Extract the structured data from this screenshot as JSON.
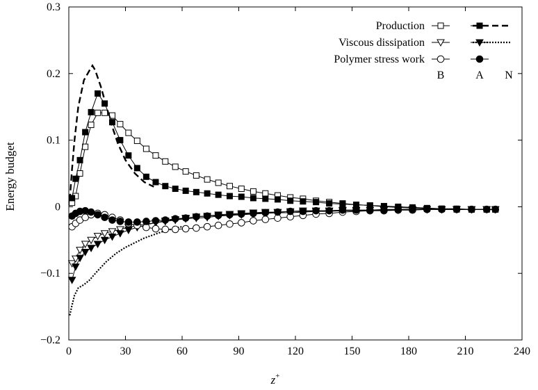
{
  "chart_data": {
    "type": "line",
    "title": "",
    "xlabel": "z",
    "xlabel_sup": "+",
    "ylabel": "Energy budget",
    "xlim": [
      0,
      240
    ],
    "ylim": [
      -0.2,
      0.3
    ],
    "xticks": [
      0,
      30,
      60,
      90,
      120,
      150,
      180,
      210,
      240
    ],
    "yticks": [
      -0.2,
      -0.1,
      0,
      0.1,
      0.2,
      0.3
    ],
    "xtick_labels": [
      "0",
      "30",
      "60",
      "90",
      "120",
      "150",
      "180",
      "210",
      "240"
    ],
    "ytick_labels": [
      "−0.2",
      "−0.1",
      "0",
      "0.1",
      "0.2",
      "0.3"
    ],
    "grid": false,
    "legend_position": "top-right",
    "legend": {
      "rows": [
        "Production",
        "Viscous dissipation",
        "Polymer stress work"
      ],
      "columns": [
        "B",
        "A",
        "N"
      ]
    },
    "series": [
      {
        "name": "Production B",
        "marker": "square-open",
        "line": "solid",
        "x": [
          1.7,
          3.6,
          5.9,
          8.7,
          11.8,
          15.3,
          19.0,
          23.0,
          27.2,
          31.6,
          36.2,
          41.0,
          46.0,
          51.1,
          56.4,
          61.9,
          67.5,
          73.3,
          79.2,
          85.2,
          91.4,
          97.7,
          104.1,
          110.6,
          117.3,
          124.0,
          130.9,
          137.9,
          145.0,
          152.2,
          159.5,
          166.9,
          174.4,
          182.0,
          189.7,
          197.5,
          205.4,
          213.3,
          221.3,
          225.9
        ],
        "y": [
          0.006,
          0.016,
          0.05,
          0.09,
          0.123,
          0.141,
          0.141,
          0.137,
          0.124,
          0.111,
          0.099,
          0.087,
          0.077,
          0.068,
          0.06,
          0.053,
          0.047,
          0.041,
          0.036,
          0.031,
          0.027,
          0.023,
          0.02,
          0.017,
          0.014,
          0.012,
          0.009,
          0.007,
          0.005,
          0.003,
          0.002,
          0.0,
          -0.001,
          -0.002,
          -0.003,
          -0.003,
          -0.004,
          -0.004,
          -0.004,
          -0.004
        ]
      },
      {
        "name": "Production A",
        "marker": "square-filled",
        "line": "solid",
        "x": [
          1.7,
          3.6,
          5.9,
          8.7,
          11.8,
          15.3,
          19.0,
          23.0,
          27.2,
          31.6,
          36.2,
          41.0,
          46.0,
          51.1,
          56.4,
          61.9,
          67.5,
          73.3,
          79.2,
          85.2,
          91.4,
          97.7,
          104.1,
          110.6,
          117.3,
          124.0,
          130.9,
          137.9,
          145.0,
          152.2,
          159.5,
          166.9,
          174.4,
          182.0,
          189.7,
          197.5,
          205.4,
          213.3,
          221.3,
          225.9
        ],
        "y": [
          0.013,
          0.042,
          0.07,
          0.112,
          0.142,
          0.17,
          0.155,
          0.127,
          0.1,
          0.077,
          0.058,
          0.045,
          0.037,
          0.031,
          0.027,
          0.024,
          0.022,
          0.02,
          0.018,
          0.016,
          0.015,
          0.013,
          0.012,
          0.011,
          0.009,
          0.008,
          0.007,
          0.005,
          0.004,
          0.003,
          0.002,
          0.001,
          0.0,
          -0.001,
          -0.002,
          -0.003,
          -0.003,
          -0.004,
          -0.004,
          -0.004
        ]
      },
      {
        "name": "Production N",
        "marker": "none",
        "line": "dashed",
        "x": [
          0.5,
          1.5,
          3,
          5,
          8,
          11,
          12.5,
          14,
          17,
          20,
          23,
          26,
          30,
          35,
          40,
          45
        ],
        "y": [
          0.01,
          0.05,
          0.1,
          0.15,
          0.19,
          0.205,
          0.212,
          0.205,
          0.18,
          0.15,
          0.12,
          0.095,
          0.07,
          0.05,
          0.037,
          0.03
        ]
      },
      {
        "name": "Viscous dissipation B",
        "marker": "triangle-open",
        "line": "solid",
        "x": [
          1.7,
          3.6,
          5.9,
          8.7,
          11.8,
          15.3,
          19.0,
          23.0,
          27.2,
          31.6,
          36.2,
          41.0,
          46.0,
          51.1,
          56.4,
          61.9,
          67.5,
          73.3,
          79.2,
          85.2,
          91.4,
          97.7,
          104.1,
          110.6,
          117.3,
          124.0,
          130.9,
          137.9,
          145.0,
          152.2,
          159.5,
          166.9,
          174.4,
          182.0,
          189.7,
          197.5,
          205.4,
          213.3,
          221.3,
          225.9
        ],
        "y": [
          -0.085,
          -0.078,
          -0.065,
          -0.056,
          -0.05,
          -0.044,
          -0.04,
          -0.037,
          -0.034,
          -0.031,
          -0.028,
          -0.026,
          -0.024,
          -0.022,
          -0.02,
          -0.018,
          -0.017,
          -0.016,
          -0.014,
          -0.013,
          -0.012,
          -0.011,
          -0.01,
          -0.009,
          -0.009,
          -0.008,
          -0.007,
          -0.007,
          -0.006,
          -0.006,
          -0.005,
          -0.005,
          -0.005,
          -0.004,
          -0.004,
          -0.004,
          -0.004,
          -0.004,
          -0.004,
          -0.004
        ]
      },
      {
        "name": "Viscous dissipation A",
        "marker": "triangle-filled",
        "line": "solid",
        "x": [
          1.7,
          3.6,
          5.9,
          8.7,
          11.8,
          15.3,
          19.0,
          23.0,
          27.2,
          31.6,
          36.2,
          41.0,
          46.0,
          51.1,
          56.4,
          61.9,
          67.5,
          73.3,
          79.2,
          85.2,
          91.4,
          97.7,
          104.1,
          110.6,
          117.3,
          124.0,
          130.9,
          137.9,
          145.0,
          152.2,
          159.5,
          166.9,
          174.4,
          182.0,
          189.7,
          197.5,
          205.4,
          213.3,
          221.3,
          225.9
        ],
        "y": [
          -0.11,
          -0.09,
          -0.077,
          -0.068,
          -0.062,
          -0.056,
          -0.05,
          -0.045,
          -0.04,
          -0.035,
          -0.031,
          -0.027,
          -0.024,
          -0.021,
          -0.019,
          -0.017,
          -0.015,
          -0.014,
          -0.012,
          -0.011,
          -0.01,
          -0.009,
          -0.008,
          -0.008,
          -0.007,
          -0.006,
          -0.006,
          -0.006,
          -0.005,
          -0.005,
          -0.005,
          -0.004,
          -0.004,
          -0.004,
          -0.004,
          -0.004,
          -0.004,
          -0.004,
          -0.004,
          -0.004
        ]
      },
      {
        "name": "Viscous dissipation N",
        "marker": "none",
        "line": "dotted",
        "x": [
          0.5,
          1.5,
          3,
          5,
          8,
          11,
          15,
          20,
          25,
          30,
          35,
          40,
          45,
          50,
          55,
          60
        ],
        "y": [
          -0.163,
          -0.15,
          -0.133,
          -0.122,
          -0.117,
          -0.11,
          -0.097,
          -0.082,
          -0.07,
          -0.061,
          -0.054,
          -0.047,
          -0.042,
          -0.037,
          -0.033,
          -0.03
        ]
      },
      {
        "name": "Polymer stress work B",
        "marker": "circle-open",
        "line": "solid",
        "x": [
          1.7,
          3.6,
          5.9,
          8.7,
          11.8,
          15.3,
          19.0,
          23.0,
          27.2,
          31.6,
          36.2,
          41.0,
          46.0,
          51.1,
          56.4,
          61.9,
          67.5,
          73.3,
          79.2,
          85.2,
          91.4,
          97.7,
          104.1,
          110.6,
          117.3,
          124.0,
          130.9,
          137.9,
          145.0,
          152.2,
          159.5,
          166.9,
          174.4,
          182.0,
          189.7,
          197.5,
          205.4,
          213.3,
          221.3,
          225.9
        ],
        "y": [
          -0.03,
          -0.025,
          -0.02,
          -0.016,
          -0.012,
          -0.01,
          -0.012,
          -0.016,
          -0.02,
          -0.025,
          -0.028,
          -0.031,
          -0.033,
          -0.034,
          -0.034,
          -0.033,
          -0.032,
          -0.03,
          -0.028,
          -0.026,
          -0.024,
          -0.021,
          -0.019,
          -0.017,
          -0.015,
          -0.013,
          -0.011,
          -0.01,
          -0.008,
          -0.007,
          -0.006,
          -0.006,
          -0.005,
          -0.005,
          -0.004,
          -0.004,
          -0.004,
          -0.004,
          -0.004,
          -0.004
        ]
      },
      {
        "name": "Polymer stress work A",
        "marker": "circle-filled",
        "line": "solid",
        "x": [
          1.7,
          3.6,
          5.9,
          8.7,
          11.8,
          15.3,
          19.0,
          23.0,
          27.2,
          31.6,
          36.2,
          41.0,
          46.0,
          51.1,
          56.4,
          61.9,
          67.5,
          73.3,
          79.2,
          85.2,
          91.4,
          97.7,
          104.1,
          110.6,
          117.3,
          124.0,
          130.9,
          137.9,
          145.0,
          152.2,
          159.5,
          166.9,
          174.4,
          182.0,
          189.7,
          197.5,
          205.4,
          213.3,
          221.3,
          225.9
        ],
        "y": [
          -0.014,
          -0.01,
          -0.007,
          -0.006,
          -0.008,
          -0.012,
          -0.016,
          -0.02,
          -0.022,
          -0.023,
          -0.023,
          -0.022,
          -0.021,
          -0.02,
          -0.018,
          -0.017,
          -0.015,
          -0.014,
          -0.013,
          -0.012,
          -0.011,
          -0.01,
          -0.009,
          -0.008,
          -0.007,
          -0.007,
          -0.006,
          -0.006,
          -0.005,
          -0.005,
          -0.005,
          -0.005,
          -0.004,
          -0.004,
          -0.004,
          -0.004,
          -0.004,
          -0.004,
          -0.004,
          -0.004
        ]
      }
    ]
  }
}
